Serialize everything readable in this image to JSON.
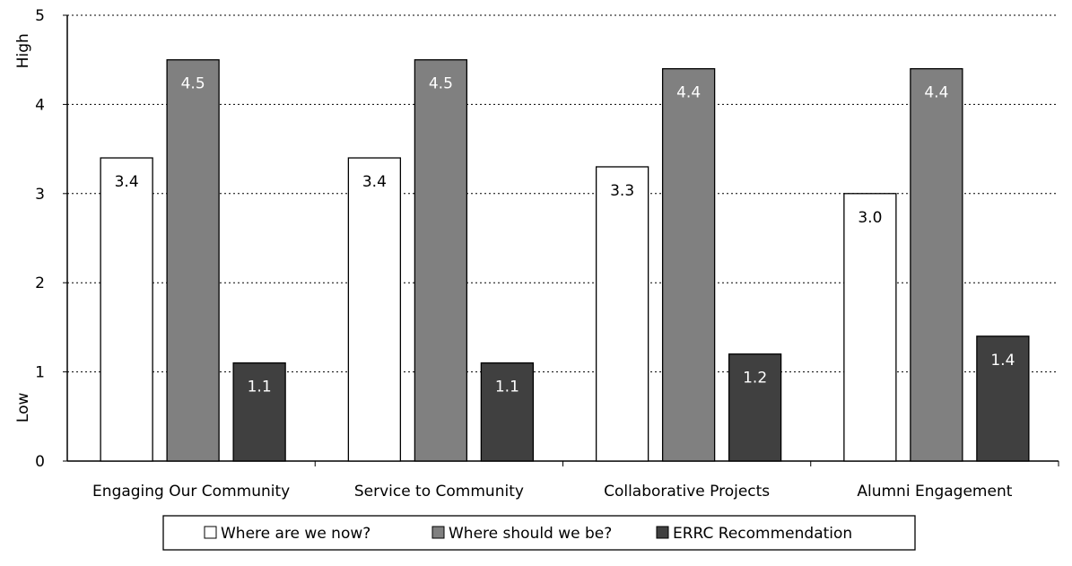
{
  "chart_data": {
    "type": "bar",
    "categories": [
      "Engaging Our Community",
      "Service to Community",
      "Collaborative Projects",
      "Alumni Engagement"
    ],
    "series": [
      {
        "name": "Where are we now?",
        "values": [
          3.4,
          3.4,
          3.3,
          3.0
        ],
        "color": "#ffffff",
        "label_color": "#000000"
      },
      {
        "name": "Where should we be?",
        "values": [
          4.5,
          4.5,
          4.4,
          4.4
        ],
        "color": "#808080",
        "label_color": "#ffffff"
      },
      {
        "name": "ERRC Recommendation",
        "values": [
          1.1,
          1.1,
          1.2,
          1.4
        ],
        "color": "#404040",
        "label_color": "#ffffff"
      }
    ],
    "value_labels": [
      [
        "3.4",
        "3.4",
        "3.3",
        "3.0"
      ],
      [
        "4.5",
        "4.5",
        "4.4",
        "4.4"
      ],
      [
        "1.1",
        "1.1",
        "1.2",
        "1.4"
      ]
    ],
    "yticks": [
      0,
      1,
      2,
      3,
      4,
      5
    ],
    "ytick_labels": [
      "0",
      "1",
      "2",
      "3",
      "4",
      "5"
    ],
    "ylim": [
      0,
      5
    ],
    "y_side_labels": {
      "high": "High",
      "low": "Low"
    },
    "grid": "dotted horizontal",
    "legend_position": "bottom"
  }
}
